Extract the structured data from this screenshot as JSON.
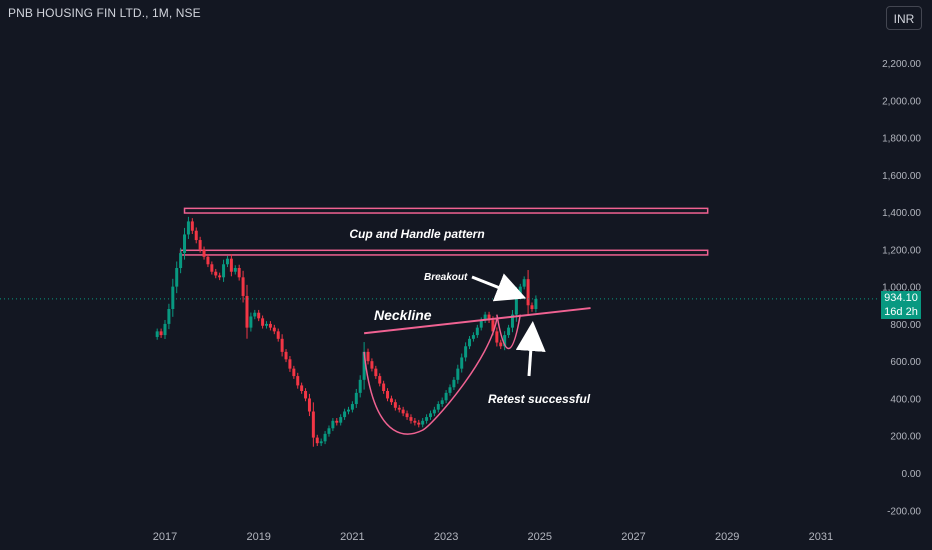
{
  "header": {
    "symbol_title": "PNB HOUSING FIN LTD., 1M, NSE",
    "currency": "INR"
  },
  "colors": {
    "background": "#131722",
    "grid": "#1e222d",
    "axis_text": "#b2b5be",
    "up": "#089981",
    "down": "#f23645",
    "pattern": "#f06292",
    "annotation_text": "#ffffff",
    "price_line": "#089981"
  },
  "price_tag": {
    "price": "934.10",
    "countdown": "16d 2h"
  },
  "chart_data": {
    "type": "candlestick",
    "interval": "1M",
    "x_axis": {
      "type": "date",
      "tick_labels": [
        "2017",
        "2019",
        "2021",
        "2023",
        "2025",
        "2027",
        "2029",
        "2031"
      ],
      "range": [
        "2016-04",
        "2032-04"
      ]
    },
    "y_axis": {
      "position": "right",
      "range": [
        -280,
        2300
      ],
      "tick_values": [
        2200,
        2000,
        1800,
        1600,
        1400,
        1200,
        1000,
        800,
        600,
        400,
        200,
        0,
        -200
      ],
      "tick_labels": [
        "2,200.00",
        "2,000.00",
        "1,800.00",
        "1,600.00",
        "1,400.00",
        "1,200.00",
        "1,000.00",
        "800.00",
        "600.00",
        "400.00",
        "200.00",
        "0.00",
        "-200.00"
      ]
    },
    "grid": false,
    "last_price": 934.1,
    "close_series": [
      {
        "t": "2016-11",
        "c": 760
      },
      {
        "t": "2016-12",
        "c": 740
      },
      {
        "t": "2017-01",
        "c": 800
      },
      {
        "t": "2017-02",
        "c": 880
      },
      {
        "t": "2017-03",
        "c": 1000
      },
      {
        "t": "2017-04",
        "c": 1100
      },
      {
        "t": "2017-05",
        "c": 1180
      },
      {
        "t": "2017-06",
        "c": 1280
      },
      {
        "t": "2017-07",
        "c": 1350
      },
      {
        "t": "2017-08",
        "c": 1300
      },
      {
        "t": "2017-09",
        "c": 1250
      },
      {
        "t": "2017-10",
        "c": 1200
      },
      {
        "t": "2017-11",
        "c": 1160
      },
      {
        "t": "2017-12",
        "c": 1120
      },
      {
        "t": "2018-01",
        "c": 1080
      },
      {
        "t": "2018-02",
        "c": 1060
      },
      {
        "t": "2018-03",
        "c": 1050
      },
      {
        "t": "2018-04",
        "c": 1120
      },
      {
        "t": "2018-05",
        "c": 1150
      },
      {
        "t": "2018-06",
        "c": 1080
      },
      {
        "t": "2018-07",
        "c": 1100
      },
      {
        "t": "2018-08",
        "c": 1050
      },
      {
        "t": "2018-09",
        "c": 950
      },
      {
        "t": "2018-10",
        "c": 780
      },
      {
        "t": "2018-11",
        "c": 840
      },
      {
        "t": "2018-12",
        "c": 860
      },
      {
        "t": "2019-01",
        "c": 830
      },
      {
        "t": "2019-02",
        "c": 790
      },
      {
        "t": "2019-03",
        "c": 800
      },
      {
        "t": "2019-04",
        "c": 780
      },
      {
        "t": "2019-05",
        "c": 760
      },
      {
        "t": "2019-06",
        "c": 720
      },
      {
        "t": "2019-07",
        "c": 650
      },
      {
        "t": "2019-08",
        "c": 610
      },
      {
        "t": "2019-09",
        "c": 560
      },
      {
        "t": "2019-10",
        "c": 520
      },
      {
        "t": "2019-11",
        "c": 470
      },
      {
        "t": "2019-12",
        "c": 440
      },
      {
        "t": "2020-01",
        "c": 400
      },
      {
        "t": "2020-02",
        "c": 330
      },
      {
        "t": "2020-03",
        "c": 190
      },
      {
        "t": "2020-04",
        "c": 160
      },
      {
        "t": "2020-05",
        "c": 170
      },
      {
        "t": "2020-06",
        "c": 210
      },
      {
        "t": "2020-07",
        "c": 240
      },
      {
        "t": "2020-08",
        "c": 280
      },
      {
        "t": "2020-09",
        "c": 270
      },
      {
        "t": "2020-10",
        "c": 300
      },
      {
        "t": "2020-11",
        "c": 330
      },
      {
        "t": "2020-12",
        "c": 340
      },
      {
        "t": "2021-01",
        "c": 370
      },
      {
        "t": "2021-02",
        "c": 430
      },
      {
        "t": "2021-03",
        "c": 500
      },
      {
        "t": "2021-04",
        "c": 650
      },
      {
        "t": "2021-05",
        "c": 600
      },
      {
        "t": "2021-06",
        "c": 560
      },
      {
        "t": "2021-07",
        "c": 520
      },
      {
        "t": "2021-08",
        "c": 480
      },
      {
        "t": "2021-09",
        "c": 440
      },
      {
        "t": "2021-10",
        "c": 400
      },
      {
        "t": "2021-11",
        "c": 380
      },
      {
        "t": "2021-12",
        "c": 350
      },
      {
        "t": "2022-01",
        "c": 340
      },
      {
        "t": "2022-02",
        "c": 320
      },
      {
        "t": "2022-03",
        "c": 300
      },
      {
        "t": "2022-04",
        "c": 280
      },
      {
        "t": "2022-05",
        "c": 270
      },
      {
        "t": "2022-06",
        "c": 260
      },
      {
        "t": "2022-07",
        "c": 280
      },
      {
        "t": "2022-08",
        "c": 300
      },
      {
        "t": "2022-09",
        "c": 320
      },
      {
        "t": "2022-10",
        "c": 340
      },
      {
        "t": "2022-11",
        "c": 370
      },
      {
        "t": "2022-12",
        "c": 390
      },
      {
        "t": "2023-01",
        "c": 430
      },
      {
        "t": "2023-02",
        "c": 460
      },
      {
        "t": "2023-03",
        "c": 500
      },
      {
        "t": "2023-04",
        "c": 560
      },
      {
        "t": "2023-05",
        "c": 620
      },
      {
        "t": "2023-06",
        "c": 680
      },
      {
        "t": "2023-07",
        "c": 720
      },
      {
        "t": "2023-08",
        "c": 740
      },
      {
        "t": "2023-09",
        "c": 780
      },
      {
        "t": "2023-10",
        "c": 820
      },
      {
        "t": "2023-11",
        "c": 850
      },
      {
        "t": "2023-12",
        "c": 820
      },
      {
        "t": "2024-01",
        "c": 760
      },
      {
        "t": "2024-02",
        "c": 700
      },
      {
        "t": "2024-03",
        "c": 680
      },
      {
        "t": "2024-04",
        "c": 740
      },
      {
        "t": "2024-05",
        "c": 780
      },
      {
        "t": "2024-06",
        "c": 850
      },
      {
        "t": "2024-07",
        "c": 960
      },
      {
        "t": "2024-08",
        "c": 1000
      },
      {
        "t": "2024-09",
        "c": 1040
      },
      {
        "t": "2024-10",
        "c": 900
      },
      {
        "t": "2024-11",
        "c": 880
      },
      {
        "t": "2024-12",
        "c": 934
      }
    ],
    "annotations": {
      "resistance_band_upper": {
        "y_low": 1395,
        "y_high": 1420,
        "x_start": "2017-06",
        "x_end": "2028-08"
      },
      "resistance_band_lower": {
        "y_low": 1170,
        "y_high": 1195,
        "x_start": "2017-05",
        "x_end": "2028-08"
      },
      "neckline": {
        "x1": "2021-04",
        "y1": 750,
        "x2": "2026-02",
        "y2": 885
      },
      "cup": {
        "x_start": "2021-04",
        "y_start": 650,
        "x_bottom": "2022-07",
        "y_bottom": 230,
        "x_end": "2024-02",
        "y_end": 830
      },
      "handle": {
        "x_start": "2024-02",
        "y_start": 850,
        "x_bottom": "2024-05",
        "y_bottom": 620,
        "x_end": "2024-08",
        "y_end": 850
      },
      "texts": {
        "pattern_label": "Cup and Handle pattern",
        "breakout_label": "Breakout",
        "neckline_label": "Neckline",
        "retest_label": "Retest successful"
      }
    }
  }
}
